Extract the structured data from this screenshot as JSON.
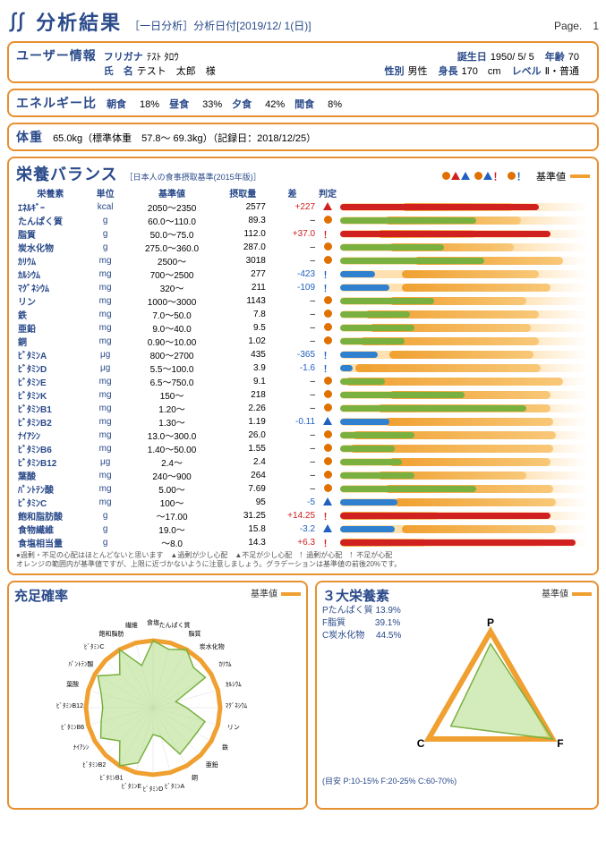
{
  "header": {
    "symbol": "∬",
    "title": "分析結果",
    "subtitle": "［一日分析］分析日付[2019/12/ 1(日)]",
    "pageLabel": "Page.",
    "pageNum": "1"
  },
  "user": {
    "title": "ユーザー情報",
    "furiganaLabel": "フリガナ",
    "furigana": "ﾃｽﾄ ﾀﾛｳ",
    "nameLabel": "氏　名",
    "name": "テスト　太郎　様",
    "birthLabel": "誕生日",
    "birth": "1950/ 5/ 5",
    "ageLabel": "年齢",
    "age": "70",
    "sexLabel": "性別",
    "sex": "男性",
    "heightLabel": "身長",
    "height": "170　cm",
    "levelLabel": "レベル",
    "level": "Ⅱ・普通"
  },
  "energy": {
    "title": "エネルギー比",
    "items": [
      {
        "label": "朝食",
        "val": "18%"
      },
      {
        "label": "昼食",
        "val": "33%"
      },
      {
        "label": "夕食",
        "val": "42%"
      },
      {
        "label": "間食",
        "val": "8%"
      }
    ]
  },
  "weight": {
    "title": "体重",
    "text": "65.0kg（標準体重　57.8～ 69.3kg）（記録日：2018/12/25）"
  },
  "balance": {
    "title": "栄養バランス",
    "subtitle": "［日本人の食事摂取基準(2015年版)］",
    "legendBase": "基準値",
    "columns": [
      "栄養素",
      "単位",
      "基準値",
      "摂取量",
      "差",
      "判定"
    ],
    "legendNote1": "●過剰・不足の心配はほとんどないと思います　▲過剰が少し心配　▲不足が少し心配　！過剰が心配　！不足が心配",
    "legendNote2": "オレンジの範囲内が基準値ですが、上限に近づかないように注意しましょう。グラデーションは基準値の前後20%です。",
    "rows": [
      {
        "name": "ｴﾈﾙｷﾞｰ",
        "unit": "kcal",
        "std": "2050～2350",
        "amt": "2577",
        "diff": "+227",
        "dcls": "pos",
        "judge": "rt",
        "stdL": 25,
        "stdW": 45,
        "valW": 80,
        "color": "#d02020"
      },
      {
        "name": "たんぱく質",
        "unit": "g",
        "std": "60.0～110.0",
        "amt": "89.3",
        "diff": "–",
        "dcls": "",
        "judge": "o",
        "stdL": 18,
        "stdW": 55,
        "valW": 55,
        "color": "#7ab040"
      },
      {
        "name": "脂質",
        "unit": "g",
        "std": "50.0～75.0",
        "amt": "112.0",
        "diff": "+37.0",
        "dcls": "pos",
        "judge": "re",
        "stdL": 15,
        "stdW": 40,
        "valW": 85,
        "color": "#d02020"
      },
      {
        "name": "炭水化物",
        "unit": "g",
        "std": "275.0～360.0",
        "amt": "287.0",
        "diff": "–",
        "dcls": "",
        "judge": "o",
        "stdL": 20,
        "stdW": 50,
        "valW": 42,
        "color": "#7ab040"
      },
      {
        "name": "ｶﾘｳﾑ",
        "unit": "mg",
        "std": "2500～",
        "amt": "3018",
        "diff": "–",
        "dcls": "",
        "judge": "o",
        "stdL": 30,
        "stdW": 60,
        "valW": 58,
        "color": "#7ab040"
      },
      {
        "name": "ｶﾙｼｳﾑ",
        "unit": "mg",
        "std": "700～2500",
        "amt": "277",
        "diff": "-423",
        "dcls": "neg",
        "judge": "be",
        "stdL": 25,
        "stdW": 55,
        "valW": 14,
        "color": "#3080d0"
      },
      {
        "name": "ﾏｸﾞﾈｼｳﾑ",
        "unit": "mg",
        "std": "320～",
        "amt": "211",
        "diff": "-109",
        "dcls": "neg",
        "judge": "be",
        "stdL": 25,
        "stdW": 60,
        "valW": 20,
        "color": "#3080d0"
      },
      {
        "name": "リン",
        "unit": "mg",
        "std": "1000～3000",
        "amt": "1143",
        "diff": "–",
        "dcls": "",
        "judge": "o",
        "stdL": 20,
        "stdW": 55,
        "valW": 38,
        "color": "#7ab040"
      },
      {
        "name": "鉄",
        "unit": "mg",
        "std": "7.0～50.0",
        "amt": "7.8",
        "diff": "–",
        "dcls": "",
        "judge": "o",
        "stdL": 10,
        "stdW": 70,
        "valW": 28,
        "color": "#7ab040"
      },
      {
        "name": "亜鉛",
        "unit": "mg",
        "std": "9.0～40.0",
        "amt": "9.5",
        "diff": "–",
        "dcls": "",
        "judge": "o",
        "stdL": 12,
        "stdW": 65,
        "valW": 30,
        "color": "#7ab040"
      },
      {
        "name": "銅",
        "unit": "mg",
        "std": "0.90～10.00",
        "amt": "1.02",
        "diff": "–",
        "dcls": "",
        "judge": "o",
        "stdL": 8,
        "stdW": 72,
        "valW": 26,
        "color": "#7ab040"
      },
      {
        "name": "ﾋﾞﾀﾐﾝA",
        "unit": "μg",
        "std": "800～2700",
        "amt": "435",
        "diff": "-365",
        "dcls": "neg",
        "judge": "be",
        "stdL": 20,
        "stdW": 58,
        "valW": 15,
        "color": "#3080d0"
      },
      {
        "name": "ﾋﾞﾀﾐﾝD",
        "unit": "μg",
        "std": "5.5～100.0",
        "amt": "3.9",
        "diff": "-1.6",
        "dcls": "neg",
        "judge": "be",
        "stdL": 6,
        "stdW": 75,
        "valW": 5,
        "color": "#3080d0"
      },
      {
        "name": "ﾋﾞﾀﾐﾝE",
        "unit": "mg",
        "std": "6.5～750.0",
        "amt": "9.1",
        "diff": "–",
        "dcls": "",
        "judge": "o",
        "stdL": 2,
        "stdW": 88,
        "valW": 18,
        "color": "#7ab040"
      },
      {
        "name": "ﾋﾞﾀﾐﾝK",
        "unit": "mg",
        "std": "150～",
        "amt": "218",
        "diff": "–",
        "dcls": "",
        "judge": "o",
        "stdL": 20,
        "stdW": 65,
        "valW": 50,
        "color": "#7ab040"
      },
      {
        "name": "ﾋﾞﾀﾐﾝB1",
        "unit": "mg",
        "std": "1.20～",
        "amt": "2.26",
        "diff": "–",
        "dcls": "",
        "judge": "o",
        "stdL": 15,
        "stdW": 70,
        "valW": 75,
        "color": "#7ab040"
      },
      {
        "name": "ﾋﾞﾀﾐﾝB2",
        "unit": "mg",
        "std": "1.30～",
        "amt": "1.19",
        "diff": "-0.11",
        "dcls": "neg",
        "judge": "bt",
        "stdL": 18,
        "stdW": 68,
        "valW": 20,
        "color": "#3080d0"
      },
      {
        "name": "ﾅｲｱｼﾝ",
        "unit": "mg",
        "std": "13.0～300.0",
        "amt": "26.0",
        "diff": "–",
        "dcls": "",
        "judge": "o",
        "stdL": 5,
        "stdW": 82,
        "valW": 30,
        "color": "#7ab040"
      },
      {
        "name": "ﾋﾞﾀﾐﾝB6",
        "unit": "mg",
        "std": "1.40～50.00",
        "amt": "1.55",
        "diff": "–",
        "dcls": "",
        "judge": "o",
        "stdL": 4,
        "stdW": 82,
        "valW": 22,
        "color": "#7ab040"
      },
      {
        "name": "ﾋﾞﾀﾐﾝB12",
        "unit": "μg",
        "std": "2.4～",
        "amt": "2.4",
        "diff": "–",
        "dcls": "",
        "judge": "o",
        "stdL": 20,
        "stdW": 65,
        "valW": 25,
        "color": "#7ab040"
      },
      {
        "name": "葉酸",
        "unit": "mg",
        "std": "240～900",
        "amt": "264",
        "diff": "–",
        "dcls": "",
        "judge": "o",
        "stdL": 15,
        "stdW": 60,
        "valW": 30,
        "color": "#7ab040"
      },
      {
        "name": "ﾊﾟﾝﾄﾃﾝ酸",
        "unit": "mg",
        "std": "5.00～",
        "amt": "7.69",
        "diff": "–",
        "dcls": "",
        "judge": "o",
        "stdL": 18,
        "stdW": 68,
        "valW": 55,
        "color": "#7ab040"
      },
      {
        "name": "ﾋﾞﾀﾐﾝC",
        "unit": "mg",
        "std": "100～",
        "amt": "95",
        "diff": "-5",
        "dcls": "neg",
        "judge": "bt",
        "stdL": 22,
        "stdW": 65,
        "valW": 23,
        "color": "#3080d0"
      },
      {
        "name": "飽和脂肪酸",
        "unit": "g",
        "std": "～17.00",
        "amt": "31.25",
        "diff": "+14.25",
        "dcls": "pos",
        "judge": "re",
        "stdL": 0,
        "stdW": 40,
        "valW": 85,
        "color": "#d02020"
      },
      {
        "name": "食物繊維",
        "unit": "g",
        "std": "19.0～",
        "amt": "15.8",
        "diff": "-3.2",
        "dcls": "neg",
        "judge": "bt",
        "stdL": 25,
        "stdW": 62,
        "valW": 22,
        "color": "#3080d0"
      },
      {
        "name": "食塩相当量",
        "unit": "g",
        "std": "～8.0",
        "amt": "14.3",
        "diff": "+6.3",
        "dcls": "pos",
        "judge": "re",
        "stdL": 0,
        "stdW": 35,
        "valW": 95,
        "color": "#d02020"
      }
    ]
  },
  "radar": {
    "title": "充足確率",
    "legend": "基準値",
    "labels": [
      "食塩",
      "たんぱく質",
      "脂質",
      "炭水化物",
      "ｶﾘｳﾑ",
      "ｶﾙｼｳﾑ",
      "ﾏｸﾞﾈｼｳﾑ",
      "リン",
      "鉄",
      "亜鉛",
      "銅",
      "ﾋﾞﾀﾐﾝA",
      "ﾋﾞﾀﾐﾝD",
      "ﾋﾞﾀﾐﾝE",
      "ﾋﾞﾀﾐﾝB1",
      "ﾋﾞﾀﾐﾝB2",
      "ﾅｲｱｼﾝ",
      "ﾋﾞﾀﾐﾝB6",
      "ﾋﾞﾀﾐﾝB12",
      "葉酸",
      "ﾊﾟﾝﾄﾃﾝ酸",
      "ﾋﾞﾀﾐﾝC",
      "飽和脂肪",
      "繊維"
    ],
    "values": [
      1.0,
      0.9,
      1.0,
      0.85,
      0.9,
      0.35,
      0.5,
      0.8,
      0.75,
      0.75,
      0.8,
      0.45,
      0.4,
      0.85,
      1.0,
      0.7,
      0.9,
      0.8,
      0.75,
      0.8,
      0.95,
      0.7,
      1.0,
      0.65
    ],
    "stdColor": "#f0a030",
    "fillColor": "#b8e090",
    "strokeColor": "#7ab040"
  },
  "macro": {
    "title": "３大栄養素",
    "legend": "基準値",
    "lines": [
      "Pたんぱく質  13.9%",
      "F脂質　　　 39.1%",
      "C炭水化物　 44.5%"
    ],
    "note": "(目安 P:10-15% F:20-25% C:60-70%)",
    "corners": {
      "P": "P",
      "F": "F",
      "C": "C"
    },
    "stdColor": "#f0a030",
    "fillColor": "#b8e090",
    "strokeColor": "#7ab040",
    "values": [
      0.83,
      1.0,
      0.64
    ]
  }
}
